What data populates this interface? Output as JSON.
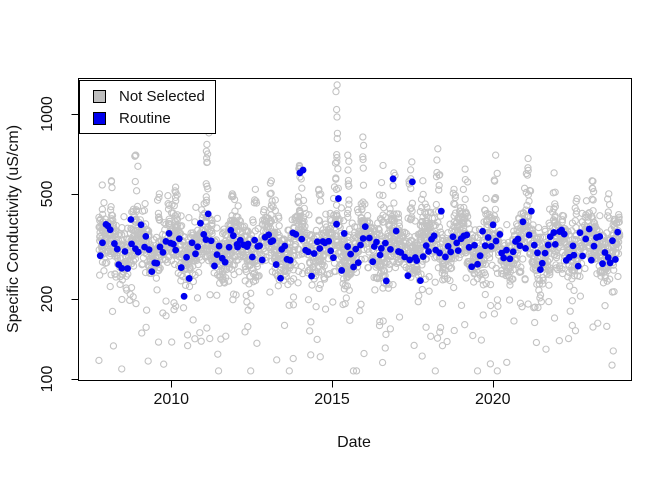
{
  "figure": {
    "background": "#ffffff",
    "text_color": "#111111",
    "box_color": "#000000"
  },
  "legend": {
    "items": [
      {
        "label": "Not Selected",
        "color": "#bebebe"
      },
      {
        "label": "Routine",
        "color": "#0000ee"
      }
    ]
  },
  "chart_data": {
    "type": "scatter",
    "title": "",
    "xlabel": "Date",
    "ylabel": "Specific Conductivity (uS/cm)",
    "y_scale": "log10",
    "grid": false,
    "legend_position": "topleft",
    "x_ticks": [
      2010,
      2015,
      2020
    ],
    "y_ticks": [
      100,
      200,
      500,
      1000
    ],
    "xlim": [
      2007.1,
      2024.3
    ],
    "ylim": [
      99,
      1370
    ],
    "x_data_range": [
      2007.75,
      2023.95
    ],
    "seed": 42,
    "series": [
      {
        "name": "Not Selected",
        "marker": "open-circle",
        "color": "#c3c3c3",
        "count": 2750,
        "base_log": 2.502,
        "season_amp": 0.048,
        "season_phase": 0.25,
        "noise_sd": 0.055,
        "dip_prob": 0.1,
        "dip_min": 0.04,
        "dip_span": 0.38,
        "dip_skew": 1.4,
        "clip_log": [
          2.03,
          2.72
        ]
      },
      {
        "name": "Routine",
        "marker": "filled-circle",
        "color": "#0000ee",
        "count": 192,
        "base_log": 2.497,
        "season_amp": 0.04,
        "season_phase": 0.25,
        "noise_sd": 0.04,
        "t_jitter": 0.015,
        "clip_log": [
          2.37,
          2.62
        ]
      }
    ],
    "spike_events": {
      "base_value": 390,
      "skew": 1.6,
      "t_sd": 0.03,
      "events": [
        {
          "t": 2007.85,
          "peak": 540,
          "n": 5
        },
        {
          "t": 2008.15,
          "peak": 560,
          "n": 8
        },
        {
          "t": 2008.9,
          "peak": 700,
          "n": 10
        },
        {
          "t": 2009.6,
          "peak": 500,
          "n": 6
        },
        {
          "t": 2010.15,
          "peak": 530,
          "n": 8
        },
        {
          "t": 2011.1,
          "peak": 880,
          "n": 16
        },
        {
          "t": 2011.9,
          "peak": 500,
          "n": 7
        },
        {
          "t": 2012.6,
          "peak": 520,
          "n": 6
        },
        {
          "t": 2013.1,
          "peak": 560,
          "n": 8
        },
        {
          "t": 2014.0,
          "peak": 640,
          "n": 14
        },
        {
          "t": 2014.6,
          "peak": 520,
          "n": 6
        },
        {
          "t": 2015.15,
          "peak": 1290,
          "n": 22
        },
        {
          "t": 2015.5,
          "peak": 700,
          "n": 10
        },
        {
          "t": 2015.95,
          "peak": 820,
          "n": 12
        },
        {
          "t": 2016.55,
          "peak": 640,
          "n": 10
        },
        {
          "t": 2016.9,
          "peak": 600,
          "n": 8
        },
        {
          "t": 2017.45,
          "peak": 660,
          "n": 12
        },
        {
          "t": 2017.8,
          "peak": 560,
          "n": 8
        },
        {
          "t": 2018.3,
          "peak": 740,
          "n": 12
        },
        {
          "t": 2018.8,
          "peak": 520,
          "n": 6
        },
        {
          "t": 2019.15,
          "peak": 620,
          "n": 8
        },
        {
          "t": 2019.8,
          "peak": 480,
          "n": 5
        },
        {
          "t": 2020.1,
          "peak": 700,
          "n": 8
        },
        {
          "t": 2021.1,
          "peak": 680,
          "n": 10
        },
        {
          "t": 2021.9,
          "peak": 600,
          "n": 8
        },
        {
          "t": 2022.6,
          "peak": 480,
          "n": 5
        },
        {
          "t": 2023.1,
          "peak": 560,
          "n": 7
        },
        {
          "t": 2023.6,
          "peak": 500,
          "n": 5
        }
      ]
    },
    "routine_overrides": [
      {
        "t": 2010.4,
        "value": 205
      },
      {
        "t": 2011.15,
        "value": 420
      },
      {
        "t": 2013.4,
        "value": 240
      },
      {
        "t": 2014.0,
        "value": 600
      },
      {
        "t": 2014.1,
        "value": 615
      },
      {
        "t": 2015.2,
        "value": 480
      },
      {
        "t": 2016.9,
        "value": 570
      },
      {
        "t": 2017.5,
        "value": 555
      },
      {
        "t": 2017.75,
        "value": 235
      },
      {
        "t": 2018.4,
        "value": 430
      },
      {
        "t": 2021.2,
        "value": 430
      }
    ]
  }
}
